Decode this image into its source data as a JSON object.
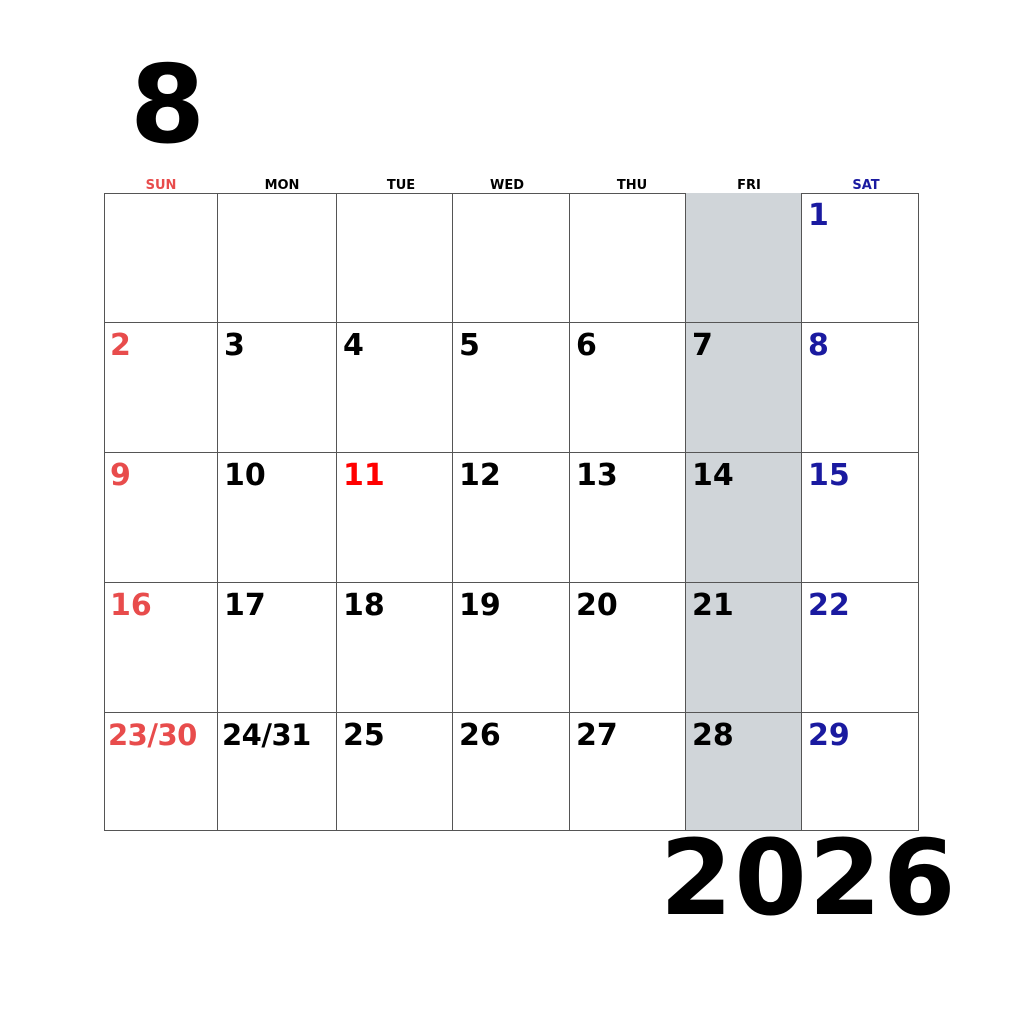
{
  "month": "8",
  "year": "2026",
  "colors": {
    "sunday": "#e84c4c",
    "saturday": "#1a1aa0",
    "holiday": "#ff0000",
    "weekday": "#000000",
    "friday_shade": "#d0d5d9"
  },
  "weekdays": [
    "SUN",
    "MON",
    "TUE",
    "WED",
    "THU",
    "FRI",
    "SAT"
  ],
  "weeks": [
    [
      "",
      "",
      "",
      "",
      "",
      "",
      "1"
    ],
    [
      "2",
      "3",
      "4",
      "5",
      "6",
      "7",
      "8"
    ],
    [
      "9",
      "10",
      "11",
      "12",
      "13",
      "14",
      "15"
    ],
    [
      "16",
      "17",
      "18",
      "19",
      "20",
      "21",
      "22"
    ],
    [
      "23/30",
      "24/31",
      "25",
      "26",
      "27",
      "28",
      "29"
    ]
  ],
  "holidays": [
    "11"
  ]
}
